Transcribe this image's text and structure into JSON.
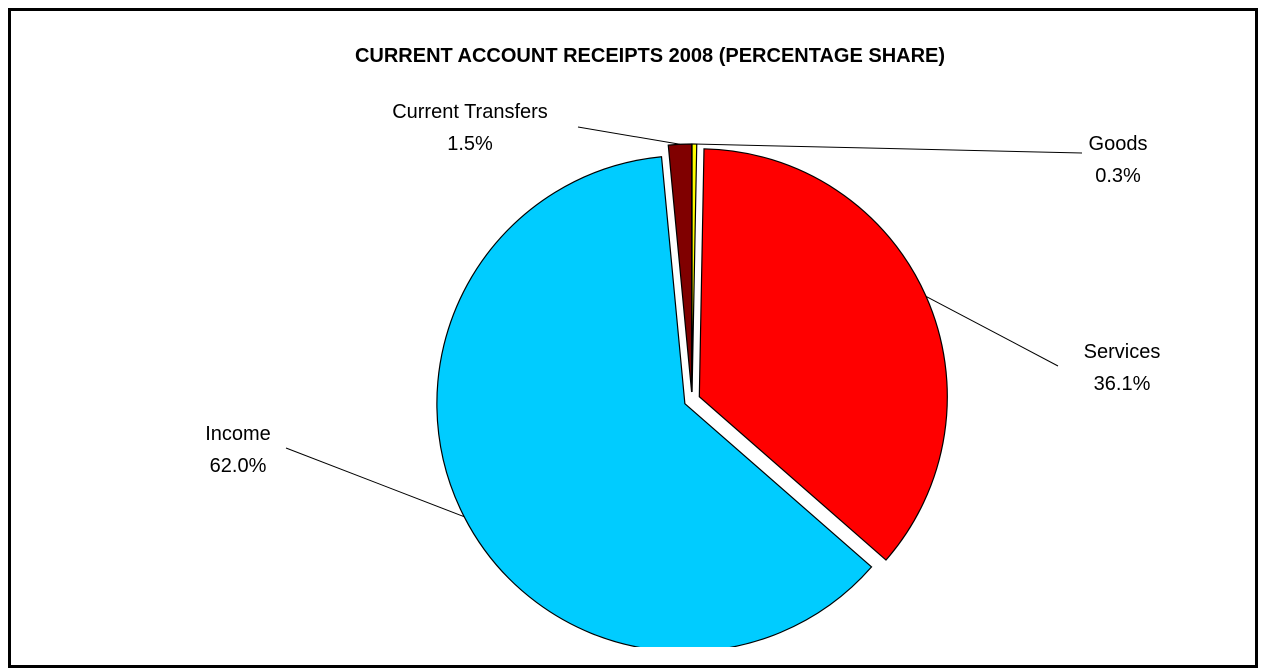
{
  "chart_data": {
    "type": "pie",
    "title": "CURRENT ACCOUNT RECEIPTS 2008 (PERCENTAGE SHARE)",
    "slices": [
      {
        "name": "Goods",
        "value": 0.3,
        "label": "0.3%",
        "color": "#ffff00"
      },
      {
        "name": "Services",
        "value": 36.1,
        "label": "36.1%",
        "color": "#ff0000"
      },
      {
        "name": "Income",
        "value": 62.0,
        "label": "62.0%",
        "color": "#00ccff"
      },
      {
        "name": "Current Transfers",
        "value": 1.5,
        "label": "1.5%",
        "color": "#800000"
      }
    ],
    "start_angle_deg": 0,
    "direction": "clockwise",
    "exploded": true,
    "legend": "none"
  }
}
